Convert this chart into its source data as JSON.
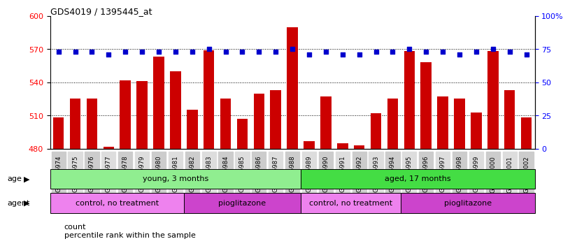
{
  "title": "GDS4019 / 1395445_at",
  "samples": [
    "GSM506974",
    "GSM506975",
    "GSM506976",
    "GSM506977",
    "GSM506978",
    "GSM506979",
    "GSM506980",
    "GSM506981",
    "GSM506982",
    "GSM506983",
    "GSM506984",
    "GSM506985",
    "GSM506986",
    "GSM506987",
    "GSM506988",
    "GSM506989",
    "GSM506990",
    "GSM506991",
    "GSM506992",
    "GSM506993",
    "GSM506994",
    "GSM506995",
    "GSM506996",
    "GSM506997",
    "GSM506998",
    "GSM506999",
    "GSM507000",
    "GSM507001",
    "GSM507002"
  ],
  "counts": [
    508,
    525,
    525,
    482,
    542,
    541,
    563,
    550,
    515,
    569,
    525,
    507,
    530,
    533,
    590,
    487,
    527,
    485,
    483,
    512,
    525,
    568,
    558,
    527,
    525,
    513,
    568,
    533,
    508
  ],
  "percentiles": [
    73,
    73,
    73,
    71,
    73,
    73,
    73,
    73,
    73,
    75,
    73,
    73,
    73,
    73,
    75,
    71,
    73,
    71,
    71,
    73,
    73,
    75,
    73,
    73,
    71,
    73,
    75,
    73,
    71
  ],
  "ylim_left": [
    480,
    600
  ],
  "yticks_left": [
    480,
    510,
    540,
    570,
    600
  ],
  "yticks_right": [
    0,
    25,
    50,
    75,
    100
  ],
  "bar_color": "#cc0000",
  "dot_color": "#0000cc",
  "age_groups": [
    {
      "label": "young, 3 months",
      "start": 0,
      "end": 15,
      "color": "#90ee90"
    },
    {
      "label": "aged, 17 months",
      "start": 15,
      "end": 29,
      "color": "#44dd44"
    }
  ],
  "agent_groups": [
    {
      "label": "control, no treatment",
      "start": 0,
      "end": 8,
      "color": "#ee82ee"
    },
    {
      "label": "pioglitazone",
      "start": 8,
      "end": 15,
      "color": "#cc44cc"
    },
    {
      "label": "control, no treatment",
      "start": 15,
      "end": 21,
      "color": "#ee82ee"
    },
    {
      "label": "pioglitazone",
      "start": 21,
      "end": 29,
      "color": "#cc44cc"
    }
  ],
  "legend_items": [
    {
      "label": "count",
      "color": "#cc0000"
    },
    {
      "label": "percentile rank within the sample",
      "color": "#0000cc"
    }
  ]
}
